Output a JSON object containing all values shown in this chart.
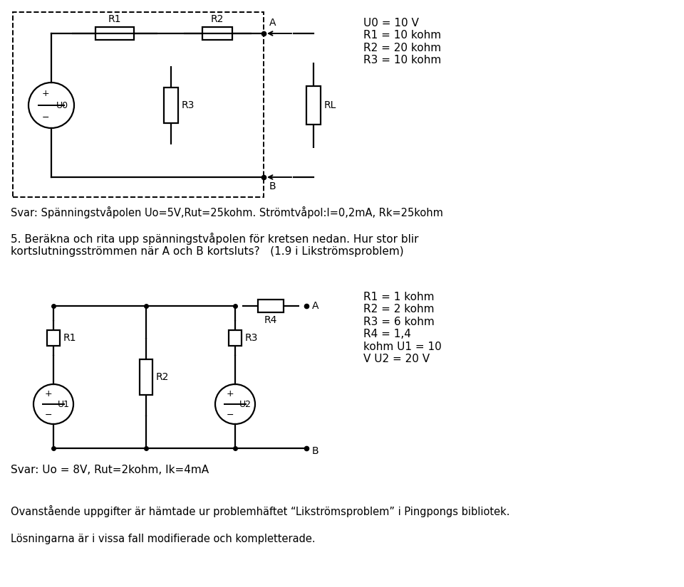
{
  "bg_color": "#ffffff",
  "line_color": "#000000",
  "line_width": 1.6,
  "c1_params": "U0 = 10 V\nR1 = 10 kohm\nR2 = 20 kohm\nR3 = 10 kohm",
  "c1_answer": "Svar: Spänningstvåpolen Uo=5V,Rut=25kohm. Strömtvåpol:I=0,2mA, Rk=25kohm",
  "question": "5. Beräkna och rita upp spänningstvåpolen för kretsen nedan. Hur stor blir\nkortslutningsströmmen när A och B kortsluts?   (1.9 i Likströmsproblem)",
  "c2_params": "R1 = 1 kohm\nR2 = 2 kohm\nR3 = 6 kohm\nR4 = 1,4\nkohm U1 = 10\nV U2 = 20 V",
  "c2_answer": "Svar: Uo = 8V, Rut=2kohm, Ik=4mA",
  "footer1": "Ovanstående uppgifter är hämtade ur problemhäftet “Likströmsproblem” i Pingpongs bibliotek.",
  "footer2": "Lösningarna är i vissa fall modifierade och kompletterade."
}
